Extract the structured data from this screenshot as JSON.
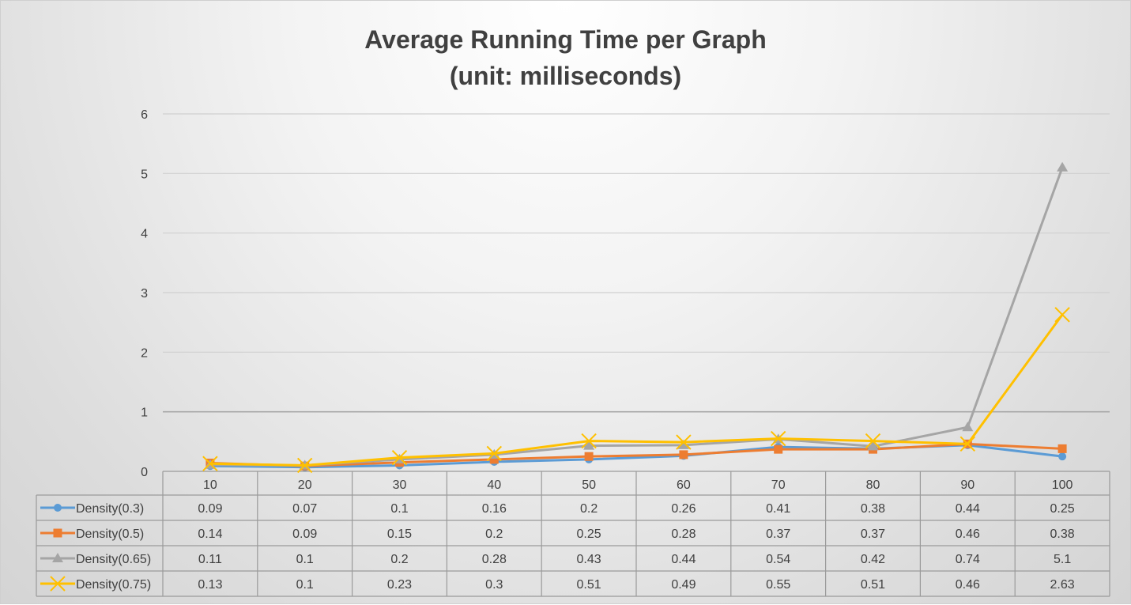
{
  "chart_data": {
    "type": "line",
    "title": "Average Running Time per Graph",
    "subtitle": "(unit: milliseconds)",
    "xlabel": "",
    "ylabel": "",
    "ylim": [
      0,
      6
    ],
    "yticks": [
      0,
      1,
      2,
      3,
      4,
      5,
      6
    ],
    "grid": true,
    "legend": "data-table",
    "categories": [
      "10",
      "20",
      "30",
      "40",
      "50",
      "60",
      "70",
      "80",
      "90",
      "100"
    ],
    "series": [
      {
        "name": "Density(0.3)",
        "color": "#5B9BD5",
        "marker": "circle",
        "values": [
          0.09,
          0.07,
          0.1,
          0.16,
          0.2,
          0.26,
          0.41,
          0.38,
          0.44,
          0.25
        ]
      },
      {
        "name": "Density(0.5)",
        "color": "#ED7D31",
        "marker": "square",
        "values": [
          0.14,
          0.09,
          0.15,
          0.2,
          0.25,
          0.28,
          0.37,
          0.37,
          0.46,
          0.38
        ]
      },
      {
        "name": "Density(0.65)",
        "color": "#A5A5A5",
        "marker": "triangle",
        "values": [
          0.11,
          0.1,
          0.2,
          0.28,
          0.43,
          0.44,
          0.54,
          0.42,
          0.74,
          5.1
        ]
      },
      {
        "name": "Density(0.75)",
        "color": "#FFC000",
        "marker": "x",
        "values": [
          0.13,
          0.1,
          0.23,
          0.3,
          0.51,
          0.49,
          0.55,
          0.51,
          0.46,
          2.63
        ]
      }
    ]
  }
}
